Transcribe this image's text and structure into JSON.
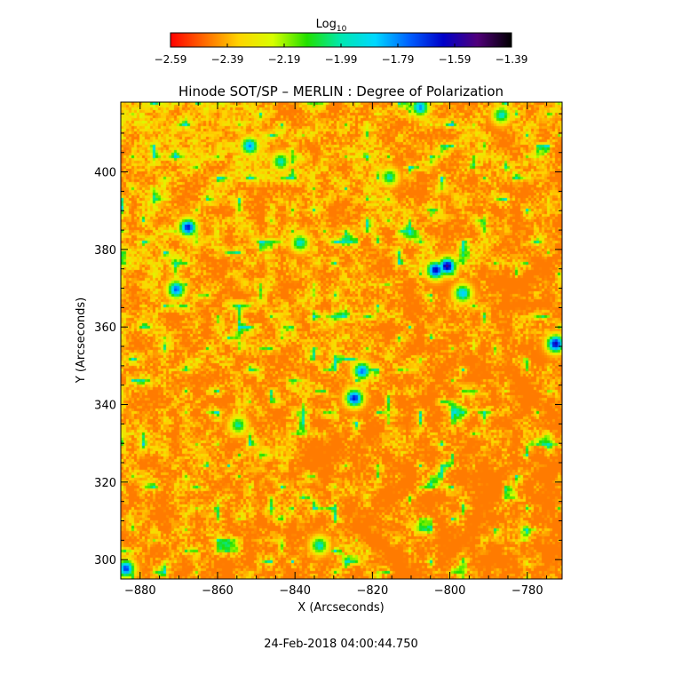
{
  "colorbar": {
    "label": "Log",
    "label_subscript": "10",
    "ticks": [
      "−2.59",
      "−2.39",
      "−2.19",
      "−1.99",
      "−1.79",
      "−1.59",
      "−1.39"
    ],
    "range": [
      -2.59,
      -1.39
    ],
    "colors": [
      "#ff0000",
      "#ff6a00",
      "#ffd400",
      "#d8ff00",
      "#22e000",
      "#00e8b0",
      "#00d8ff",
      "#0060ff",
      "#0000c8",
      "#50007a",
      "#000000"
    ]
  },
  "chart_data": {
    "type": "heatmap",
    "title": "Hinode SOT/SP – MERLIN : Degree of Polarization",
    "xlabel": "X (Arcseconds)",
    "ylabel": "Y (Arcseconds)",
    "xlim": [
      -885,
      -771
    ],
    "ylim": [
      295,
      418
    ],
    "xticks": [
      -880,
      -860,
      -840,
      -820,
      -800,
      -780
    ],
    "yticks": [
      300,
      320,
      340,
      360,
      380,
      400
    ],
    "xtick_labels": [
      "−880",
      "−860",
      "−840",
      "−820",
      "−800",
      "−780"
    ],
    "ytick_labels": [
      "300",
      "320",
      "340",
      "360",
      "380",
      "400"
    ],
    "background_level": -2.45,
    "features": [
      {
        "x": -801,
        "y": 376,
        "value": -1.55
      },
      {
        "x": -804,
        "y": 375,
        "value": -1.6
      },
      {
        "x": -797,
        "y": 369,
        "value": -1.85
      },
      {
        "x": -868,
        "y": 386,
        "value": -1.65
      },
      {
        "x": -871,
        "y": 370,
        "value": -1.75
      },
      {
        "x": -773,
        "y": 356,
        "value": -1.6
      },
      {
        "x": -825,
        "y": 342,
        "value": -1.65
      },
      {
        "x": -823,
        "y": 349,
        "value": -1.75
      },
      {
        "x": -852,
        "y": 407,
        "value": -1.8
      },
      {
        "x": -844,
        "y": 403,
        "value": -1.95
      },
      {
        "x": -884,
        "y": 298,
        "value": -1.7
      },
      {
        "x": -839,
        "y": 382,
        "value": -1.95
      },
      {
        "x": -816,
        "y": 399,
        "value": -2.0
      },
      {
        "x": -787,
        "y": 415,
        "value": -1.95
      },
      {
        "x": -855,
        "y": 335,
        "value": -2.0
      },
      {
        "x": -834,
        "y": 304,
        "value": -1.95
      },
      {
        "x": -808,
        "y": 417,
        "value": -1.8
      }
    ]
  },
  "timestamp": "24-Feb-2018 04:00:44.750"
}
